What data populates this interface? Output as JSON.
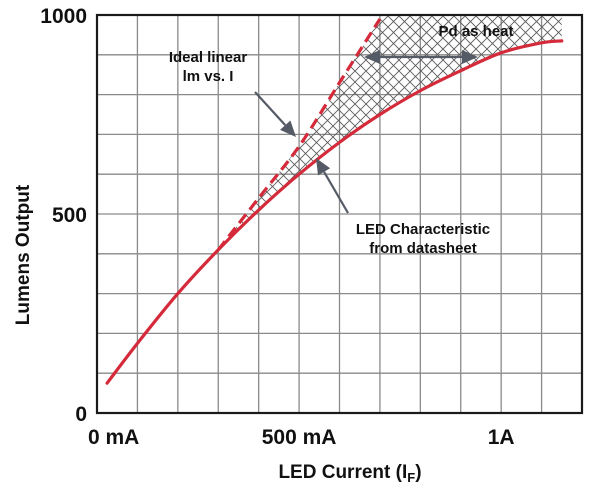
{
  "chart_data": {
    "type": "line",
    "title": "",
    "xlabel": "LED Current",
    "xlabel_subscript": "F",
    "xlabel_symbol_open": "(I",
    "xlabel_symbol_close": ")",
    "ylabel": "Lumens Output",
    "xlim": [
      0,
      1200
    ],
    "ylim": [
      0,
      1000
    ],
    "x_ticks": [
      {
        "value": 0,
        "label": "0 mA"
      },
      {
        "value": 500,
        "label": "500 mA"
      },
      {
        "value": 1000,
        "label": "1A"
      }
    ],
    "y_ticks": [
      {
        "value": 0,
        "label": "0"
      },
      {
        "value": 500,
        "label": "500"
      },
      {
        "value": 1000,
        "label": "1000"
      }
    ],
    "grid": true,
    "grid_step_x": 100,
    "grid_step_y": 100,
    "series": [
      {
        "role": "datasheet",
        "style": "solid",
        "color": "#d42a3a",
        "x": [
          25,
          100,
          200,
          300,
          400,
          500,
          600,
          700,
          800,
          900,
          1000,
          1100,
          1150
        ],
        "y": [
          75,
          175,
          300,
          410,
          510,
          600,
          680,
          750,
          810,
          860,
          905,
          930,
          935
        ]
      },
      {
        "role": "ideal-linear",
        "style": "dashed",
        "color": "#d42a3a",
        "x": [
          300,
          400,
          500,
          600,
          700
        ],
        "y": [
          410,
          540,
          670,
          830,
          990
        ]
      }
    ],
    "heat_region": {
      "label": "Pd as heat",
      "hatched": true
    },
    "annotations": {
      "ideal": [
        "Ideal linear",
        "lm vs. I"
      ],
      "datasheet": [
        "LED Characteristic",
        "from datasheet"
      ],
      "heat": "Pd as heat"
    }
  }
}
